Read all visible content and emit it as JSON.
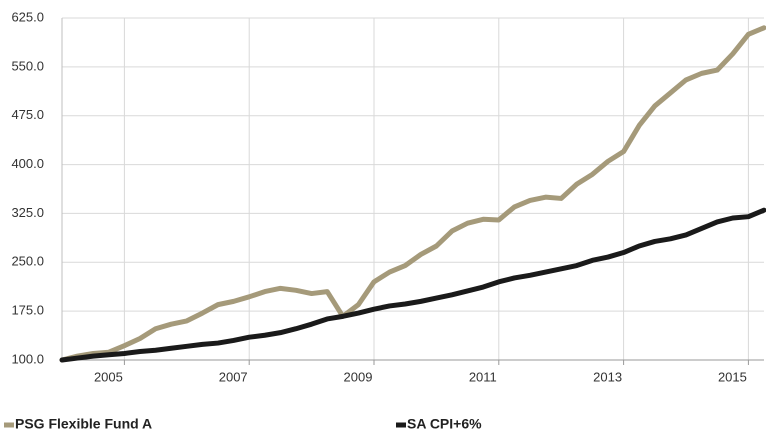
{
  "chart_data": {
    "type": "line",
    "x": [
      2004,
      2004.25,
      2004.5,
      2004.75,
      2005,
      2005.25,
      2005.5,
      2005.75,
      2006,
      2006.25,
      2006.5,
      2006.75,
      2007,
      2007.25,
      2007.5,
      2007.75,
      2008,
      2008.25,
      2008.5,
      2008.75,
      2009,
      2009.25,
      2009.5,
      2009.75,
      2010,
      2010.25,
      2010.5,
      2010.75,
      2011,
      2011.25,
      2011.5,
      2011.75,
      2012,
      2012.25,
      2012.5,
      2012.75,
      2013,
      2013.25,
      2013.5,
      2013.75,
      2014,
      2014.25,
      2014.5,
      2014.75,
      2015,
      2015.25
    ],
    "series": [
      {
        "name": "PSG Flexible Fund A",
        "color": "#a59a7a",
        "values": [
          100,
          106,
          110,
          112,
          122,
          133,
          148,
          155,
          160,
          172,
          185,
          190,
          197,
          205,
          210,
          207,
          202,
          205,
          167,
          185,
          220,
          235,
          245,
          262,
          275,
          298,
          310,
          316,
          315,
          335,
          345,
          350,
          348,
          370,
          385,
          405,
          420,
          460,
          490,
          510,
          530,
          540,
          545,
          570,
          600,
          610
        ]
      },
      {
        "name": "SA CPI+6%",
        "color": "#1a1a1a",
        "values": [
          100,
          103,
          106,
          108,
          110,
          113,
          115,
          118,
          121,
          124,
          126,
          130,
          135,
          138,
          142,
          148,
          155,
          163,
          167,
          172,
          178,
          183,
          186,
          190,
          195,
          200,
          206,
          212,
          220,
          226,
          230,
          235,
          240,
          245,
          253,
          258,
          265,
          275,
          282,
          286,
          292,
          302,
          312,
          318,
          320,
          330
        ]
      }
    ],
    "xlim": [
      2004,
      2015.25
    ],
    "xticks": [
      2005,
      2007,
      2009,
      2011,
      2013,
      2015
    ],
    "ylim": [
      100,
      625
    ],
    "yticks": [
      {
        "value": 100,
        "label": "100.0"
      },
      {
        "value": 175,
        "label": "175.0"
      },
      {
        "value": 250,
        "label": "250.0"
      },
      {
        "value": 325,
        "label": "325.0"
      },
      {
        "value": 400,
        "label": "400.0"
      },
      {
        "value": 475,
        "label": "475.0"
      },
      {
        "value": 550,
        "label": "550.0"
      },
      {
        "value": 625,
        "label": "625.0"
      }
    ],
    "grid": true,
    "legend": "bottom"
  }
}
